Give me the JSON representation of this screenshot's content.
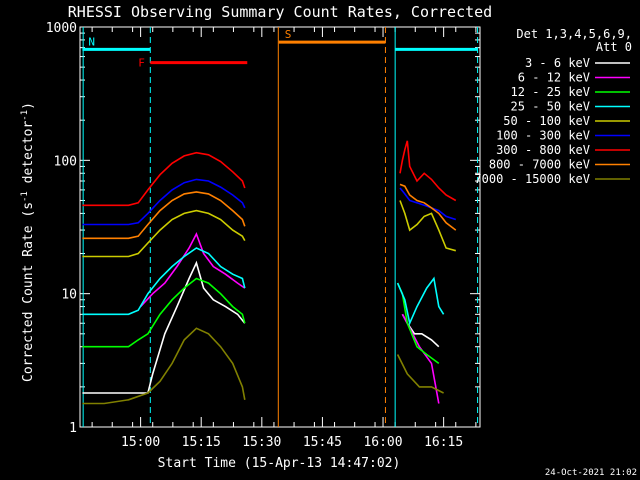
{
  "chart_data": {
    "type": "line",
    "title": "RHESSI Observing Summary Count Rates, Corrected",
    "xlabel": "Start Time (15-Apr-13 14:47:02)",
    "ylabel": "Corrected Count Rate (s⁻¹ detector⁻¹)",
    "ylabel_parts": [
      "Corrected Count Rate (s",
      "-1",
      " detector",
      "-1",
      ")"
    ],
    "yscale": "log",
    "ylim": [
      1,
      1000
    ],
    "xlim": [
      14.75,
      16.4
    ],
    "yticks": [
      {
        "value": 1,
        "label": "1"
      },
      {
        "value": 10,
        "label": "10"
      },
      {
        "value": 100,
        "label": "100"
      },
      {
        "value": 1000,
        "label": "1000"
      }
    ],
    "xticks": [
      {
        "value": 15.0,
        "label": "15:00"
      },
      {
        "value": 15.25,
        "label": "15:15"
      },
      {
        "value": 15.5,
        "label": "15:30"
      },
      {
        "value": 15.75,
        "label": "15:45"
      },
      {
        "value": 16.0,
        "label": "16:00"
      },
      {
        "value": 16.25,
        "label": "16:15"
      }
    ],
    "legend_header": [
      "Det 1,3,4,5,6,9,",
      "Att 0"
    ],
    "legend_placement": "right",
    "date_stamp": "24-Oct-2021 21:02",
    "series": [
      {
        "name": "3 - 6 keV",
        "color": "#ffffff",
        "segments": [
          [
            [
              14.76,
              1.8
            ],
            [
              14.85,
              1.8
            ],
            [
              14.95,
              1.8
            ],
            [
              15.03,
              1.8
            ],
            [
              15.05,
              2.5
            ],
            [
              15.1,
              5
            ],
            [
              15.15,
              8
            ],
            [
              15.2,
              13
            ],
            [
              15.23,
              17
            ],
            [
              15.26,
              11
            ],
            [
              15.3,
              9
            ],
            [
              15.35,
              8
            ],
            [
              15.4,
              7
            ],
            [
              15.43,
              6
            ]
          ],
          [
            [
              16.08,
              7
            ],
            [
              16.1,
              6
            ],
            [
              16.13,
              5
            ],
            [
              16.16,
              5
            ],
            [
              16.2,
              4.5
            ],
            [
              16.23,
              4
            ]
          ]
        ]
      },
      {
        "name": "6 - 12 keV",
        "color": "#ff00ff",
        "segments": [
          [
            [
              15.0,
              8
            ],
            [
              15.05,
              10
            ],
            [
              15.1,
              12
            ],
            [
              15.15,
              16
            ],
            [
              15.2,
              22
            ],
            [
              15.23,
              28
            ],
            [
              15.26,
              20
            ],
            [
              15.3,
              16
            ],
            [
              15.35,
              14
            ],
            [
              15.4,
              12
            ],
            [
              15.43,
              11
            ]
          ],
          [
            [
              16.08,
              7
            ],
            [
              16.1,
              6
            ],
            [
              16.15,
              4
            ],
            [
              16.2,
              3
            ],
            [
              16.23,
              1.5
            ]
          ]
        ]
      },
      {
        "name": "12 - 25 keV",
        "color": "#00ff00",
        "segments": [
          [
            [
              14.76,
              4
            ],
            [
              14.8,
              4
            ],
            [
              14.85,
              4
            ],
            [
              14.9,
              4
            ],
            [
              14.95,
              4
            ],
            [
              14.99,
              4.5
            ],
            [
              15.03,
              5
            ],
            [
              15.08,
              7
            ],
            [
              15.13,
              9
            ],
            [
              15.18,
              11
            ],
            [
              15.23,
              13
            ],
            [
              15.28,
              12
            ],
            [
              15.33,
              10
            ],
            [
              15.38,
              8
            ],
            [
              15.42,
              7
            ],
            [
              15.43,
              6
            ]
          ],
          [
            [
              16.06,
              12
            ],
            [
              16.08,
              10
            ],
            [
              16.1,
              6
            ],
            [
              16.14,
              4
            ],
            [
              16.18,
              3.5
            ],
            [
              16.23,
              3
            ]
          ]
        ]
      },
      {
        "name": "25 - 50 keV",
        "color": "#00ffff",
        "segments": [
          [
            [
              14.76,
              7
            ],
            [
              14.8,
              7
            ],
            [
              14.85,
              7
            ],
            [
              14.9,
              7
            ],
            [
              14.95,
              7
            ],
            [
              14.99,
              7.5
            ],
            [
              15.03,
              10
            ],
            [
              15.08,
              13
            ],
            [
              15.13,
              16
            ],
            [
              15.18,
              19
            ],
            [
              15.23,
              22
            ],
            [
              15.28,
              20
            ],
            [
              15.33,
              16
            ],
            [
              15.38,
              14
            ],
            [
              15.42,
              13
            ],
            [
              15.43,
              11
            ]
          ],
          [
            [
              16.06,
              12
            ],
            [
              16.09,
              9
            ],
            [
              16.11,
              6
            ],
            [
              16.14,
              8
            ],
            [
              16.18,
              11
            ],
            [
              16.21,
              13
            ],
            [
              16.23,
              8
            ],
            [
              16.25,
              7
            ]
          ]
        ]
      },
      {
        "name": "50 - 100 keV",
        "color": "#cccc00",
        "segments": [
          [
            [
              14.76,
              19
            ],
            [
              14.85,
              19
            ],
            [
              14.95,
              19
            ],
            [
              14.99,
              20
            ],
            [
              15.03,
              24
            ],
            [
              15.08,
              30
            ],
            [
              15.13,
              36
            ],
            [
              15.18,
              40
            ],
            [
              15.23,
              42
            ],
            [
              15.28,
              40
            ],
            [
              15.33,
              36
            ],
            [
              15.38,
              30
            ],
            [
              15.42,
              27
            ],
            [
              15.43,
              25
            ]
          ],
          [
            [
              16.07,
              50
            ],
            [
              16.09,
              40
            ],
            [
              16.11,
              30
            ],
            [
              16.14,
              33
            ],
            [
              16.17,
              38
            ],
            [
              16.2,
              40
            ],
            [
              16.23,
              30
            ],
            [
              16.26,
              22
            ],
            [
              16.3,
              21
            ]
          ]
        ]
      },
      {
        "name": "100 - 300 keV",
        "color": "#0000ff",
        "segments": [
          [
            [
              14.76,
              33
            ],
            [
              14.85,
              33
            ],
            [
              14.95,
              33
            ],
            [
              14.99,
              34
            ],
            [
              15.03,
              40
            ],
            [
              15.08,
              50
            ],
            [
              15.13,
              60
            ],
            [
              15.18,
              68
            ],
            [
              15.23,
              72
            ],
            [
              15.28,
              70
            ],
            [
              15.33,
              63
            ],
            [
              15.38,
              55
            ],
            [
              15.42,
              48
            ],
            [
              15.43,
              44
            ]
          ],
          [
            [
              16.07,
              62
            ],
            [
              16.09,
              56
            ],
            [
              16.11,
              50
            ],
            [
              16.14,
              48
            ],
            [
              16.17,
              46
            ],
            [
              16.2,
              44
            ],
            [
              16.23,
              42
            ],
            [
              16.26,
              38
            ],
            [
              16.3,
              36
            ]
          ]
        ]
      },
      {
        "name": "300 - 800 keV",
        "color": "#ff0000",
        "segments": [
          [
            [
              14.76,
              46
            ],
            [
              14.85,
              46
            ],
            [
              14.95,
              46
            ],
            [
              14.99,
              48
            ],
            [
              15.03,
              60
            ],
            [
              15.08,
              78
            ],
            [
              15.13,
              95
            ],
            [
              15.18,
              108
            ],
            [
              15.23,
              114
            ],
            [
              15.28,
              110
            ],
            [
              15.33,
              98
            ],
            [
              15.38,
              82
            ],
            [
              15.42,
              70
            ],
            [
              15.43,
              62
            ]
          ],
          [
            [
              16.07,
              80
            ],
            [
              16.08,
              100
            ],
            [
              16.09,
              120
            ],
            [
              16.1,
              140
            ],
            [
              16.11,
              90
            ],
            [
              16.14,
              70
            ],
            [
              16.17,
              80
            ],
            [
              16.2,
              72
            ],
            [
              16.23,
              62
            ],
            [
              16.26,
              55
            ],
            [
              16.3,
              50
            ]
          ]
        ]
      },
      {
        "name": "800 - 7000 keV",
        "color": "#ff8000",
        "segments": [
          [
            [
              14.76,
              26
            ],
            [
              14.85,
              26
            ],
            [
              14.95,
              26
            ],
            [
              14.99,
              27
            ],
            [
              15.03,
              33
            ],
            [
              15.08,
              42
            ],
            [
              15.13,
              50
            ],
            [
              15.18,
              56
            ],
            [
              15.23,
              58
            ],
            [
              15.28,
              56
            ],
            [
              15.33,
              50
            ],
            [
              15.38,
              42
            ],
            [
              15.42,
              36
            ],
            [
              15.43,
              32
            ]
          ],
          [
            [
              16.07,
              66
            ],
            [
              16.09,
              64
            ],
            [
              16.11,
              55
            ],
            [
              16.14,
              50
            ],
            [
              16.17,
              48
            ],
            [
              16.2,
              44
            ],
            [
              16.23,
              40
            ],
            [
              16.26,
              34
            ],
            [
              16.3,
              30
            ]
          ]
        ]
      },
      {
        "name": "7000 - 15000 keV",
        "color": "#808000",
        "segments": [
          [
            [
              14.76,
              1.5
            ],
            [
              14.85,
              1.5
            ],
            [
              14.95,
              1.6
            ],
            [
              15.03,
              1.8
            ],
            [
              15.08,
              2.2
            ],
            [
              15.13,
              3
            ],
            [
              15.18,
              4.5
            ],
            [
              15.23,
              5.5
            ],
            [
              15.28,
              5
            ],
            [
              15.33,
              4
            ],
            [
              15.38,
              3
            ],
            [
              15.42,
              2
            ],
            [
              15.43,
              1.6
            ]
          ],
          [
            [
              16.06,
              3.5
            ],
            [
              16.1,
              2.5
            ],
            [
              16.15,
              2
            ],
            [
              16.2,
              2
            ],
            [
              16.25,
              1.8
            ]
          ]
        ]
      }
    ],
    "bars": [
      {
        "label": "N",
        "color": "#00ffff",
        "x": [
          14.76,
          15.04
        ],
        "y": 680
      },
      {
        "label": "F",
        "color": "#ff0000",
        "x": [
          15.04,
          15.44
        ],
        "y": 540
      },
      {
        "label": "S",
        "color": "#ff8000",
        "x": [
          15.57,
          16.01
        ],
        "y": 770
      },
      {
        "label": "",
        "color": "#00ffff",
        "x": [
          16.05,
          16.39
        ],
        "y": 680
      }
    ],
    "vlines": [
      {
        "x": 14.763,
        "color": "#00ffff",
        "dashed": false
      },
      {
        "x": 15.04,
        "color": "#00ffff",
        "dashed": true
      },
      {
        "x": 15.568,
        "color": "#ff8000",
        "dashed": false
      },
      {
        "x": 16.01,
        "color": "#ff8000",
        "dashed": true
      },
      {
        "x": 16.05,
        "color": "#00ffff",
        "dashed": false
      },
      {
        "x": 16.39,
        "color": "#00ffff",
        "dashed": true
      }
    ]
  }
}
